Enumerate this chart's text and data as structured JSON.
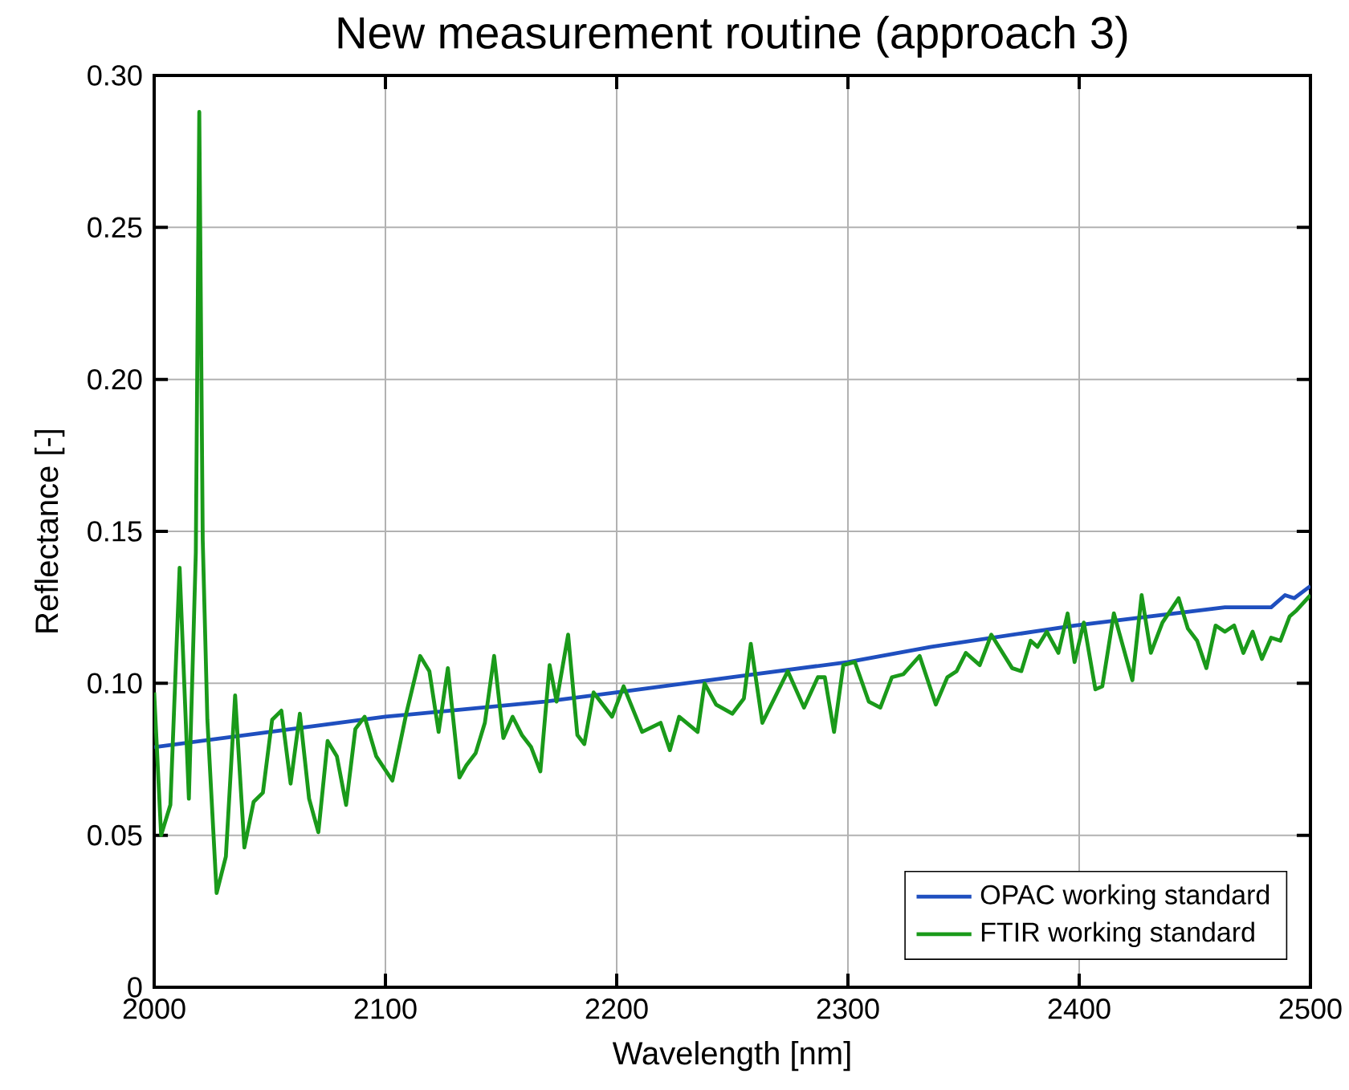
{
  "chart_data": {
    "type": "line",
    "title": "New measurement routine (approach 3)",
    "xlabel": "Wavelength [nm]",
    "ylabel": "Reflectance [-]",
    "xlim": [
      2000,
      2500
    ],
    "ylim": [
      0,
      0.3
    ],
    "xticks": [
      2000,
      2100,
      2200,
      2300,
      2400,
      2500
    ],
    "yticks": [
      0,
      {
        "value": 0.05,
        "label": "0.05"
      },
      {
        "value": 0.1,
        "label": "0.10"
      },
      {
        "value": 0.15,
        "label": "0.15"
      },
      {
        "value": 0.2,
        "label": "0.20"
      },
      {
        "value": 0.25,
        "label": "0.25"
      },
      {
        "value": 0.3,
        "label": "0.30"
      }
    ],
    "grid": true,
    "legend": "bottom right",
    "line_style": "solid",
    "marker": "none",
    "series": [
      {
        "name": "OPAC working standard",
        "color": "#1f4fbf",
        "x": [
          2000,
          2050,
          2100,
          2169,
          2200,
          2250,
          2300,
          2336,
          2398,
          2463,
          2483,
          2489,
          2493,
          2500
        ],
        "values": [
          0.079,
          0.084,
          0.089,
          0.094,
          0.097,
          0.102,
          0.107,
          0.112,
          0.119,
          0.125,
          0.125,
          0.129,
          0.128,
          0.132
        ]
      },
      {
        "name": "FTIR working standard",
        "color": "#1a9a1a",
        "x": [
          2000,
          2003,
          2007,
          2011,
          2015,
          2018,
          2019.5,
          2021,
          2023,
          2027,
          2031,
          2035,
          2039,
          2043,
          2047,
          2051,
          2055,
          2059,
          2063,
          2067,
          2071,
          2075,
          2079,
          2083,
          2087,
          2091,
          2096,
          2103,
          2109,
          2115,
          2119,
          2123,
          2127,
          2132,
          2135,
          2139,
          2143,
          2147,
          2151,
          2155,
          2159,
          2163,
          2167,
          2171,
          2174,
          2179,
          2183,
          2186,
          2190,
          2198,
          2203,
          2211,
          2219,
          2223,
          2227,
          2235,
          2238,
          2243,
          2250,
          2255,
          2258,
          2263,
          2274,
          2281,
          2287,
          2290,
          2294,
          2298,
          2303,
          2309,
          2314,
          2319,
          2324,
          2331,
          2338,
          2343,
          2347,
          2351,
          2357,
          2362,
          2371,
          2375,
          2379,
          2382,
          2386,
          2391,
          2395,
          2398,
          2402,
          2407,
          2410,
          2415,
          2419,
          2423,
          2427,
          2431,
          2436,
          2443,
          2447,
          2451,
          2455,
          2459,
          2463,
          2467,
          2471,
          2475,
          2479,
          2483,
          2487,
          2491,
          2494,
          2500
        ],
        "values": [
          0.097,
          0.05,
          0.06,
          0.138,
          0.062,
          0.143,
          0.288,
          0.147,
          0.088,
          0.031,
          0.043,
          0.096,
          0.046,
          0.061,
          0.064,
          0.088,
          0.091,
          0.067,
          0.09,
          0.062,
          0.051,
          0.081,
          0.076,
          0.06,
          0.085,
          0.089,
          0.076,
          0.068,
          0.09,
          0.109,
          0.104,
          0.084,
          0.105,
          0.069,
          0.073,
          0.077,
          0.087,
          0.109,
          0.082,
          0.089,
          0.083,
          0.079,
          0.071,
          0.106,
          0.094,
          0.116,
          0.083,
          0.08,
          0.097,
          0.089,
          0.099,
          0.084,
          0.087,
          0.078,
          0.089,
          0.084,
          0.1,
          0.093,
          0.09,
          0.095,
          0.113,
          0.087,
          0.104,
          0.092,
          0.102,
          0.102,
          0.084,
          0.106,
          0.107,
          0.094,
          0.092,
          0.102,
          0.103,
          0.109,
          0.093,
          0.102,
          0.104,
          0.11,
          0.106,
          0.116,
          0.105,
          0.104,
          0.114,
          0.112,
          0.117,
          0.11,
          0.123,
          0.107,
          0.12,
          0.098,
          0.099,
          0.123,
          0.112,
          0.101,
          0.129,
          0.11,
          0.12,
          0.128,
          0.118,
          0.114,
          0.105,
          0.119,
          0.117,
          0.119,
          0.11,
          0.117,
          0.108,
          0.115,
          0.114,
          0.122,
          0.124,
          0.129
        ]
      }
    ]
  }
}
